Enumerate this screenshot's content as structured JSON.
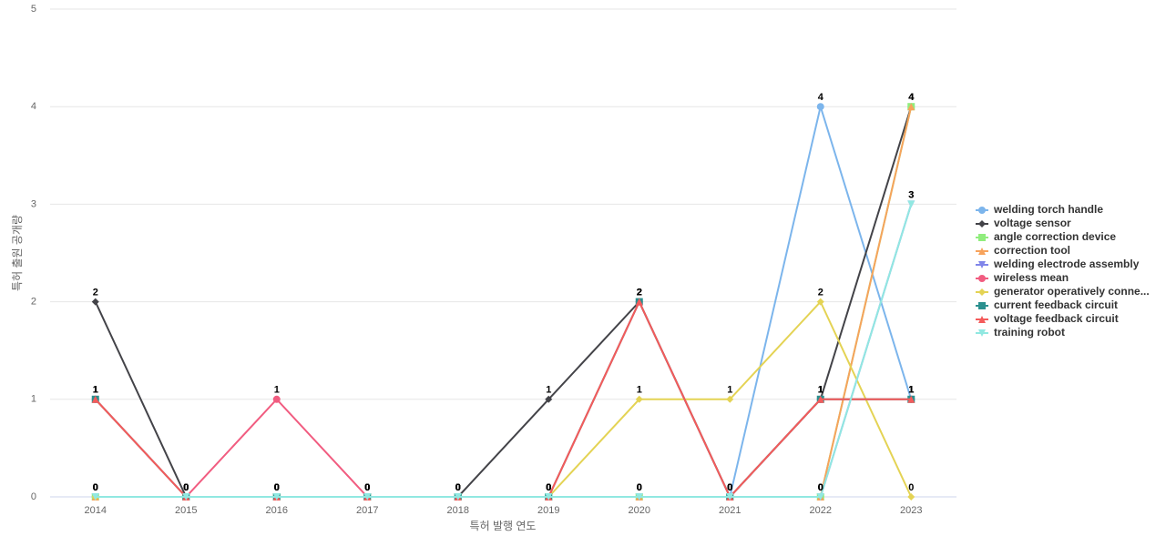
{
  "chart_data": {
    "type": "line",
    "x_label": "특허 발행 연도",
    "y_label": "특허 출원 공개량",
    "categories": [
      "2014",
      "2015",
      "2016",
      "2017",
      "2018",
      "2019",
      "2020",
      "2021",
      "2022",
      "2023"
    ],
    "ylim": [
      0,
      5
    ],
    "yticks": [
      0,
      1,
      2,
      3,
      4,
      5
    ],
    "grid": true,
    "series": [
      {
        "name": "welding torch handle",
        "color": "#7cb5ec",
        "marker": "circle",
        "values": [
          0,
          0,
          0,
          0,
          0,
          0,
          0,
          0,
          4,
          1
        ]
      },
      {
        "name": "voltage sensor",
        "color": "#434348",
        "marker": "diamond",
        "values": [
          2,
          0,
          0,
          0,
          0,
          1,
          2,
          0,
          1,
          4
        ]
      },
      {
        "name": "angle correction device",
        "color": "#90ed7d",
        "marker": "square",
        "values": [
          0,
          0,
          0,
          0,
          0,
          0,
          0,
          0,
          0,
          4
        ]
      },
      {
        "name": "correction tool",
        "color": "#f7a35c",
        "marker": "triangle",
        "values": [
          0,
          0,
          0,
          0,
          0,
          0,
          0,
          0,
          0,
          4
        ]
      },
      {
        "name": "welding electrode assembly",
        "color": "#8085e9",
        "marker": "triangle-down",
        "values": [
          0,
          0,
          0,
          0,
          0,
          0,
          0,
          0,
          0,
          3
        ]
      },
      {
        "name": "wireless mean",
        "color": "#f15c80",
        "marker": "circle",
        "values": [
          1,
          0,
          1,
          0,
          0,
          0,
          2,
          0,
          1,
          1
        ]
      },
      {
        "name": "generator operatively conne...",
        "color": "#e4d354",
        "marker": "diamond",
        "values": [
          0,
          0,
          0,
          0,
          0,
          0,
          1,
          1,
          2,
          0
        ]
      },
      {
        "name": "current feedback circuit",
        "color": "#2b908f",
        "marker": "square",
        "values": [
          1,
          0,
          0,
          0,
          0,
          0,
          2,
          0,
          1,
          1
        ]
      },
      {
        "name": "voltage feedback circuit",
        "color": "#f45b5b",
        "marker": "triangle",
        "values": [
          1,
          0,
          0,
          0,
          0,
          0,
          2,
          0,
          1,
          1
        ]
      },
      {
        "name": "training robot",
        "color": "#91e8e1",
        "marker": "triangle-down",
        "values": [
          0,
          0,
          0,
          0,
          0,
          0,
          0,
          0,
          0,
          3
        ]
      }
    ]
  }
}
